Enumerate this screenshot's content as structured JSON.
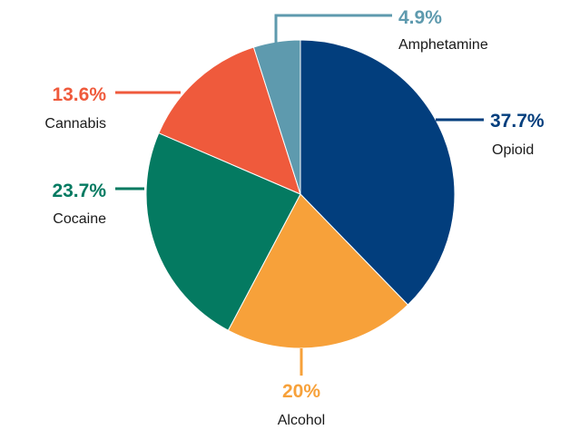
{
  "chart_data": {
    "type": "pie",
    "series": [
      {
        "name": "Opioid",
        "value": 37.7,
        "label": "37.7%",
        "color": "#023e7d"
      },
      {
        "name": "Alcohol",
        "value": 20,
        "label": "20%",
        "color": "#f7a13a"
      },
      {
        "name": "Cocaine",
        "value": 23.7,
        "label": "23.7%",
        "color": "#047a61"
      },
      {
        "name": "Cannabis",
        "value": 13.6,
        "label": "13.6%",
        "color": "#ef5a3c"
      },
      {
        "name": "Amphetamine",
        "value": 4.9,
        "label": "4.9%",
        "color": "#5e9aae"
      }
    ],
    "start": "top",
    "direction": "clockwise",
    "legend": "none"
  }
}
